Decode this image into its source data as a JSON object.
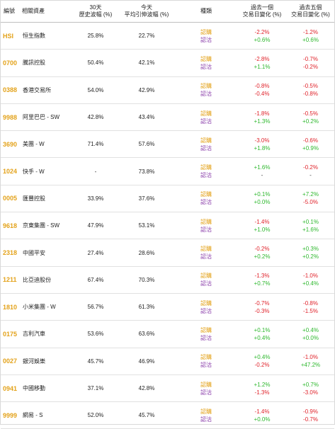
{
  "header": {
    "code": "編號",
    "underlying": "相關資產",
    "hist_vol": "30天\n歷史波幅 (%)",
    "implied_vol": "今天\n平均引伸波幅 (%)",
    "type": "種類",
    "chg_1m": "過去一個\n交易日變化 (%)",
    "chg_5d": "過去五個\n交易日變化 (%)"
  },
  "labels": {
    "bull": "認購",
    "bear": "認沽"
  },
  "colors": {
    "code": "#e3a21a",
    "bull": "#e3a21a",
    "bear": "#8e44ad",
    "positive": "#2eb82e",
    "negative": "#e0222a"
  },
  "rows": [
    {
      "code": "HSI",
      "name": "恒生指數",
      "hv": "25.8%",
      "iv": "22.7%",
      "c1a": "-2.2%",
      "c1b": "+0.6%",
      "c5a": "-1.2%",
      "c5b": "+0.6%"
    },
    {
      "code": "0700",
      "name": "騰訊控股",
      "hv": "50.4%",
      "iv": "42.1%",
      "c1a": "-2.8%",
      "c1b": "+1.1%",
      "c5a": "-0.7%",
      "c5b": "-0.2%"
    },
    {
      "code": "0388",
      "name": "香港交易所",
      "hv": "54.0%",
      "iv": "42.9%",
      "c1a": "-0.8%",
      "c1b": "-0.4%",
      "c5a": "-0.5%",
      "c5b": "-0.8%"
    },
    {
      "code": "9988",
      "name": "阿里巴巴 - SW",
      "hv": "42.8%",
      "iv": "43.4%",
      "c1a": "-1.8%",
      "c1b": "+1.3%",
      "c5a": "-0.5%",
      "c5b": "+0.2%"
    },
    {
      "code": "3690",
      "name": "美團 - W",
      "hv": "71.4%",
      "iv": "57.6%",
      "c1a": "-3.0%",
      "c1b": "+1.8%",
      "c5a": "-0.6%",
      "c5b": "+0.9%"
    },
    {
      "code": "1024",
      "name": "快手 - W",
      "hv": "-",
      "iv": "73.8%",
      "c1a": "+1.6%",
      "c1b": "-",
      "c5a": "-0.2%",
      "c5b": "-"
    },
    {
      "code": "0005",
      "name": "匯豐控股",
      "hv": "33.9%",
      "iv": "37.6%",
      "c1a": "+0.1%",
      "c1b": "+0.0%",
      "c5a": "+7.2%",
      "c5b": "-5.0%"
    },
    {
      "code": "9618",
      "name": "京東集團 - SW",
      "hv": "47.9%",
      "iv": "53.1%",
      "c1a": "-1.4%",
      "c1b": "+1.0%",
      "c5a": "+0.1%",
      "c5b": "+1.6%"
    },
    {
      "code": "2318",
      "name": "中國平安",
      "hv": "27.4%",
      "iv": "28.6%",
      "c1a": "-0.2%",
      "c1b": "+0.2%",
      "c5a": "+0.3%",
      "c5b": "+0.2%"
    },
    {
      "code": "1211",
      "name": "比亞迪股份",
      "hv": "67.4%",
      "iv": "70.3%",
      "c1a": "-1.3%",
      "c1b": "+0.7%",
      "c5a": "-1.0%",
      "c5b": "+0.4%"
    },
    {
      "code": "1810",
      "name": "小米集團 - W",
      "hv": "56.7%",
      "iv": "61.3%",
      "c1a": "-0.7%",
      "c1b": "-0.3%",
      "c5a": "-0.8%",
      "c5b": "-1.5%"
    },
    {
      "code": "0175",
      "name": "吉利汽車",
      "hv": "53.6%",
      "iv": "63.6%",
      "c1a": "+0.1%",
      "c1b": "+0.4%",
      "c5a": "+0.4%",
      "c5b": "+0.0%"
    },
    {
      "code": "0027",
      "name": "銀河娛樂",
      "hv": "45.7%",
      "iv": "46.9%",
      "c1a": "+0.4%",
      "c1b": "-0.2%",
      "c5a": "-1.0%",
      "c5b": "+47.2%"
    },
    {
      "code": "0941",
      "name": "中國移動",
      "hv": "37.1%",
      "iv": "42.8%",
      "c1a": "+1.2%",
      "c1b": "-1.3%",
      "c5a": "+0.7%",
      "c5b": "-3.0%"
    },
    {
      "code": "9999",
      "name": "網易 - S",
      "hv": "52.0%",
      "iv": "45.7%",
      "c1a": "-1.4%",
      "c1b": "+0.0%",
      "c5a": "-0.9%",
      "c5b": "-0.7%"
    }
  ]
}
